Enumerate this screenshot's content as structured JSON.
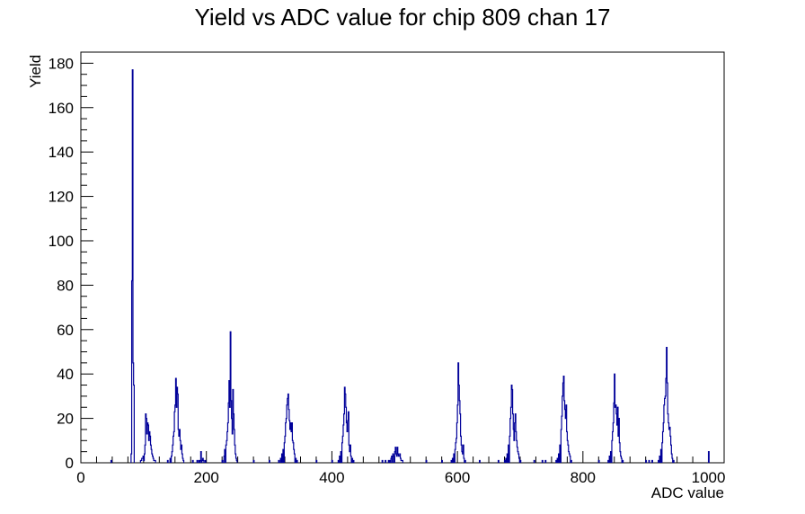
{
  "chart_data": {
    "type": "bar",
    "title": "Yield vs ADC value for chip 809 chan 17",
    "xlabel": "ADC value",
    "ylabel": "Yield",
    "xlim": [
      0,
      1025
    ],
    "ylim": [
      0,
      185
    ],
    "x_ticks": [
      0,
      200,
      400,
      600,
      800,
      1000
    ],
    "y_ticks": [
      0,
      20,
      40,
      60,
      80,
      100,
      120,
      140,
      160,
      180
    ],
    "line_color": "#000099",
    "bin_width": 1,
    "bins": [
      [
        48,
        1
      ],
      [
        80,
        4
      ],
      [
        81,
        82
      ],
      [
        82,
        177
      ],
      [
        83,
        45
      ],
      [
        84,
        35
      ],
      [
        95,
        1
      ],
      [
        96,
        1
      ],
      [
        97,
        2
      ],
      [
        98,
        2
      ],
      [
        99,
        3
      ],
      [
        100,
        1
      ],
      [
        101,
        4
      ],
      [
        102,
        8
      ],
      [
        103,
        22
      ],
      [
        104,
        20
      ],
      [
        105,
        13
      ],
      [
        106,
        18
      ],
      [
        107,
        17
      ],
      [
        108,
        10
      ],
      [
        109,
        14
      ],
      [
        110,
        12
      ],
      [
        111,
        8
      ],
      [
        112,
        6
      ],
      [
        113,
        4
      ],
      [
        114,
        3
      ],
      [
        115,
        2
      ],
      [
        116,
        1
      ],
      [
        117,
        1
      ],
      [
        118,
        1
      ],
      [
        138,
        1
      ],
      [
        142,
        2
      ],
      [
        144,
        3
      ],
      [
        145,
        5
      ],
      [
        146,
        8
      ],
      [
        147,
        12
      ],
      [
        148,
        14
      ],
      [
        149,
        23
      ],
      [
        150,
        26
      ],
      [
        151,
        38
      ],
      [
        152,
        25
      ],
      [
        153,
        34
      ],
      [
        154,
        31
      ],
      [
        155,
        15
      ],
      [
        156,
        12
      ],
      [
        157,
        15
      ],
      [
        158,
        10
      ],
      [
        159,
        6
      ],
      [
        160,
        8
      ],
      [
        161,
        4
      ],
      [
        162,
        2
      ],
      [
        163,
        1
      ],
      [
        178,
        1
      ],
      [
        185,
        1
      ],
      [
        188,
        1
      ],
      [
        190,
        1
      ],
      [
        191,
        5
      ],
      [
        193,
        1
      ],
      [
        194,
        2
      ],
      [
        195,
        1
      ],
      [
        198,
        1
      ],
      [
        225,
        1
      ],
      [
        228,
        3
      ],
      [
        229,
        6
      ],
      [
        231,
        8
      ],
      [
        232,
        10
      ],
      [
        233,
        14
      ],
      [
        234,
        18
      ],
      [
        235,
        27
      ],
      [
        236,
        37
      ],
      [
        237,
        25
      ],
      [
        238,
        59
      ],
      [
        239,
        28
      ],
      [
        240,
        20
      ],
      [
        241,
        13
      ],
      [
        242,
        33
      ],
      [
        243,
        22
      ],
      [
        244,
        15
      ],
      [
        245,
        8
      ],
      [
        246,
        4
      ],
      [
        247,
        2
      ],
      [
        248,
        1
      ],
      [
        275,
        1
      ],
      [
        300,
        1
      ],
      [
        315,
        1
      ],
      [
        318,
        2
      ],
      [
        320,
        4
      ],
      [
        322,
        6
      ],
      [
        324,
        9
      ],
      [
        325,
        12
      ],
      [
        326,
        18
      ],
      [
        327,
        20
      ],
      [
        328,
        26
      ],
      [
        329,
        29
      ],
      [
        330,
        31
      ],
      [
        331,
        24
      ],
      [
        332,
        19
      ],
      [
        333,
        15
      ],
      [
        334,
        18
      ],
      [
        335,
        14
      ],
      [
        336,
        18
      ],
      [
        337,
        10
      ],
      [
        338,
        9
      ],
      [
        339,
        6
      ],
      [
        340,
        4
      ],
      [
        342,
        2
      ],
      [
        344,
        1
      ],
      [
        375,
        1
      ],
      [
        400,
        1
      ],
      [
        410,
        1
      ],
      [
        412,
        3
      ],
      [
        414,
        5
      ],
      [
        416,
        9
      ],
      [
        417,
        12
      ],
      [
        418,
        17
      ],
      [
        419,
        22
      ],
      [
        420,
        34
      ],
      [
        421,
        31
      ],
      [
        422,
        25
      ],
      [
        423,
        18
      ],
      [
        424,
        14
      ],
      [
        425,
        19
      ],
      [
        426,
        23
      ],
      [
        427,
        8
      ],
      [
        428,
        5
      ],
      [
        429,
        8
      ],
      [
        430,
        3
      ],
      [
        432,
        2
      ],
      [
        434,
        1
      ],
      [
        480,
        1
      ],
      [
        485,
        1
      ],
      [
        490,
        1
      ],
      [
        492,
        1
      ],
      [
        494,
        2
      ],
      [
        495,
        3
      ],
      [
        497,
        4
      ],
      [
        498,
        3
      ],
      [
        500,
        5
      ],
      [
        501,
        7
      ],
      [
        502,
        4
      ],
      [
        503,
        3
      ],
      [
        504,
        7
      ],
      [
        505,
        4
      ],
      [
        506,
        3
      ],
      [
        507,
        3
      ],
      [
        508,
        4
      ],
      [
        509,
        2
      ],
      [
        510,
        1
      ],
      [
        511,
        1
      ],
      [
        512,
        1
      ],
      [
        550,
        1
      ],
      [
        575,
        1
      ],
      [
        590,
        1
      ],
      [
        592,
        2
      ],
      [
        594,
        4
      ],
      [
        596,
        6
      ],
      [
        597,
        9
      ],
      [
        598,
        11
      ],
      [
        599,
        18
      ],
      [
        600,
        26
      ],
      [
        601,
        45
      ],
      [
        602,
        35
      ],
      [
        603,
        28
      ],
      [
        604,
        22
      ],
      [
        605,
        12
      ],
      [
        606,
        8
      ],
      [
        607,
        5
      ],
      [
        608,
        4
      ],
      [
        609,
        8
      ],
      [
        610,
        2
      ],
      [
        612,
        1
      ],
      [
        635,
        1
      ],
      [
        665,
        1
      ],
      [
        675,
        1
      ],
      [
        677,
        2
      ],
      [
        679,
        4
      ],
      [
        681,
        8
      ],
      [
        683,
        12
      ],
      [
        684,
        20
      ],
      [
        685,
        25
      ],
      [
        686,
        35
      ],
      [
        687,
        33
      ],
      [
        688,
        22
      ],
      [
        689,
        15
      ],
      [
        690,
        10
      ],
      [
        691,
        18
      ],
      [
        692,
        22
      ],
      [
        693,
        14
      ],
      [
        694,
        10
      ],
      [
        695,
        7
      ],
      [
        696,
        5
      ],
      [
        697,
        4
      ],
      [
        698,
        2
      ],
      [
        700,
        1
      ],
      [
        722,
        1
      ],
      [
        735,
        1
      ],
      [
        740,
        1
      ],
      [
        757,
        1
      ],
      [
        759,
        2
      ],
      [
        761,
        4
      ],
      [
        763,
        8
      ],
      [
        765,
        15
      ],
      [
        766,
        21
      ],
      [
        767,
        30
      ],
      [
        768,
        36
      ],
      [
        769,
        39
      ],
      [
        770,
        28
      ],
      [
        771,
        24
      ],
      [
        772,
        20
      ],
      [
        773,
        26
      ],
      [
        774,
        14
      ],
      [
        775,
        10
      ],
      [
        776,
        8
      ],
      [
        777,
        5
      ],
      [
        778,
        4
      ],
      [
        779,
        3
      ],
      [
        781,
        1
      ],
      [
        825,
        1
      ],
      [
        840,
        1
      ],
      [
        842,
        3
      ],
      [
        844,
        5
      ],
      [
        846,
        10
      ],
      [
        847,
        14
      ],
      [
        848,
        18
      ],
      [
        849,
        27
      ],
      [
        850,
        40
      ],
      [
        851,
        25
      ],
      [
        852,
        26
      ],
      [
        853,
        22
      ],
      [
        854,
        17
      ],
      [
        855,
        25
      ],
      [
        856,
        12
      ],
      [
        857,
        20
      ],
      [
        858,
        9
      ],
      [
        859,
        5
      ],
      [
        860,
        3
      ],
      [
        861,
        2
      ],
      [
        863,
        1
      ],
      [
        900,
        1
      ],
      [
        905,
        1
      ],
      [
        910,
        1
      ],
      [
        920,
        1
      ],
      [
        922,
        3
      ],
      [
        924,
        6
      ],
      [
        926,
        9
      ],
      [
        927,
        14
      ],
      [
        928,
        18
      ],
      [
        929,
        26
      ],
      [
        930,
        29
      ],
      [
        931,
        30
      ],
      [
        932,
        38
      ],
      [
        933,
        52
      ],
      [
        934,
        36
      ],
      [
        935,
        22
      ],
      [
        936,
        18
      ],
      [
        937,
        15
      ],
      [
        938,
        16
      ],
      [
        939,
        12
      ],
      [
        940,
        8
      ],
      [
        941,
        4
      ],
      [
        942,
        2
      ],
      [
        944,
        1
      ],
      [
        1000,
        5
      ]
    ]
  }
}
